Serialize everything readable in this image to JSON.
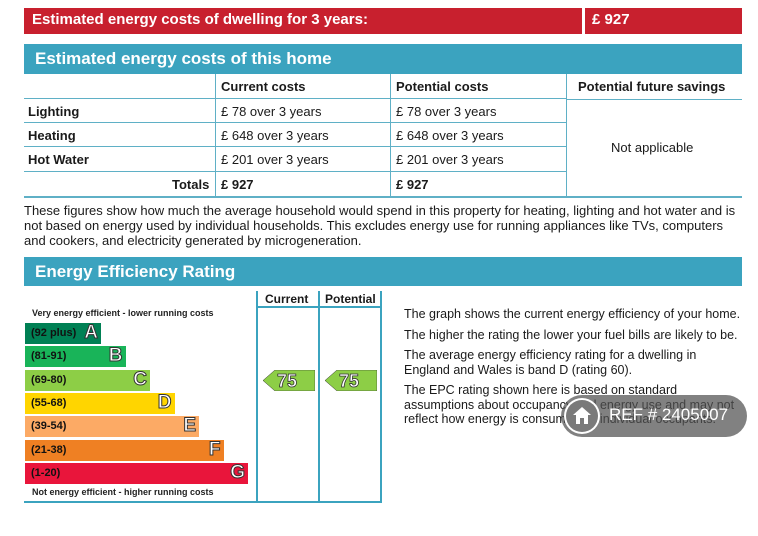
{
  "summary": {
    "label": "Estimated energy costs of dwelling for 3 years:",
    "value": "£ 927"
  },
  "costs_section": {
    "title": "Estimated energy costs of this home",
    "headers": [
      "Current costs",
      "Potential costs",
      "Potential future savings"
    ],
    "rows": [
      {
        "label": "Lighting",
        "current": "£ 78 over 3 years",
        "potential": "£ 78 over 3 years"
      },
      {
        "label": "Heating",
        "current": "£ 648 over 3 years",
        "potential": "£ 648 over 3 years"
      },
      {
        "label": "Hot Water",
        "current": "£ 201 over 3 years",
        "potential": "£ 201 over 3 years"
      }
    ],
    "totals": {
      "label": "Totals",
      "current": "£ 927",
      "potential": "£ 927"
    },
    "savings": "Not applicable"
  },
  "note": "These figures show how much the average household would spend in this property for heating, lighting and hot water and is not based on energy used by individual households. This excludes energy use for running appliances like TVs, computers and cookers, and electricity generated by microgeneration.",
  "rating_section": {
    "title": "Energy Efficiency Rating",
    "top_caption": "Very energy efficient - lower running costs",
    "bottom_caption": "Not energy efficient - higher running costs",
    "col_current": "Current",
    "col_potential": "Potential",
    "bands": [
      {
        "range": "(92 plus)",
        "letter": "A",
        "color": "#008054"
      },
      {
        "range": "(81-91)",
        "letter": "B",
        "color": "#19b459"
      },
      {
        "range": "(69-80)",
        "letter": "C",
        "color": "#8dce46"
      },
      {
        "range": "(55-68)",
        "letter": "D",
        "color": "#ffd500"
      },
      {
        "range": "(39-54)",
        "letter": "E",
        "color": "#fcaa65"
      },
      {
        "range": "(21-38)",
        "letter": "F",
        "color": "#ef8023"
      },
      {
        "range": "(1-20)",
        "letter": "G",
        "color": "#e9153b"
      }
    ],
    "current_rating": "75",
    "potential_rating": "75",
    "rating_color": "#8dce46",
    "descriptions": [
      "The graph shows the current energy efficiency of your home.",
      "The higher the rating the lower your fuel bills are likely to be.",
      "The average energy efficiency rating for a dwelling in England and Wales is band D (rating 60).",
      "The EPC rating shown here is based on standard assumptions about occupancy and energy use and may not reflect how energy is consumed by individual occupants."
    ]
  },
  "watermark": {
    "text": "REF # 2405007",
    "icon": "home-icon"
  }
}
